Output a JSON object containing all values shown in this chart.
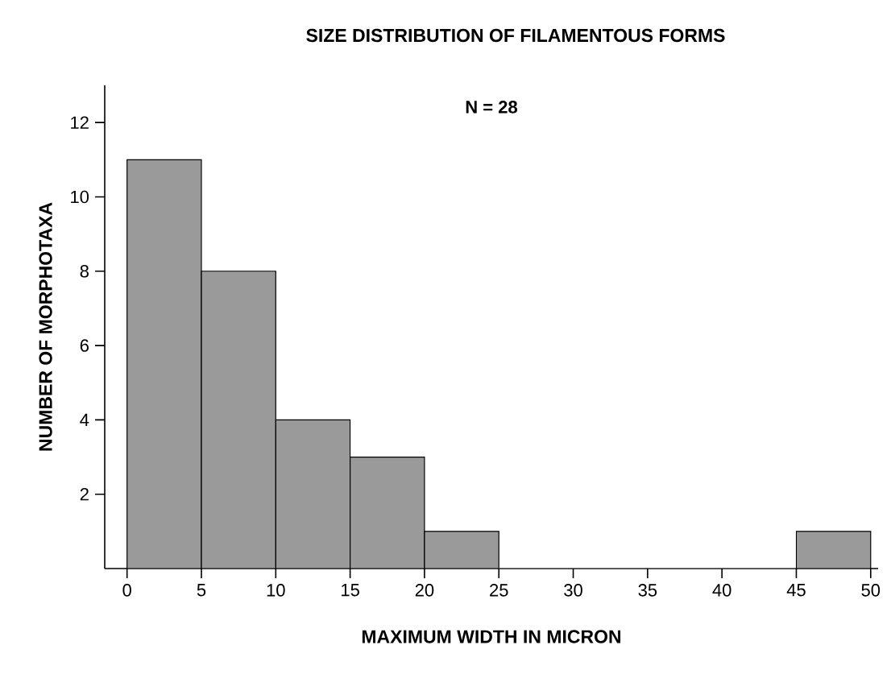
{
  "chart_data": {
    "type": "histogram",
    "title": "SIZE DISTRIBUTION OF FILAMENTOUS FORMS",
    "xlabel": "MAXIMUM WIDTH IN MICRON",
    "ylabel": "NUMBER OF MORPHOTAXA",
    "annotations": [
      "N = 28"
    ],
    "bins": [
      0,
      5,
      10,
      15,
      20,
      25,
      30,
      35,
      40,
      45,
      50
    ],
    "values": [
      11,
      8,
      4,
      3,
      1,
      0,
      0,
      0,
      0,
      1
    ],
    "color": "#9a9a9a",
    "xlim": [
      -1.5,
      50.5
    ],
    "ylim": [
      0,
      13
    ],
    "xticks": [
      0,
      5,
      10,
      15,
      20,
      25,
      30,
      35,
      40,
      45,
      50
    ],
    "yticks": [
      2,
      4,
      6,
      8,
      10,
      12
    ],
    "grid": false
  }
}
